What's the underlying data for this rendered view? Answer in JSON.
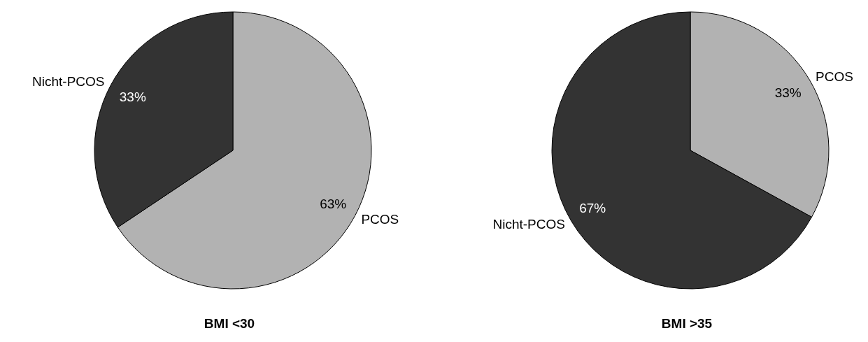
{
  "chart_data": [
    {
      "type": "pie",
      "title": "BMI <30",
      "categories": [
        "PCOS",
        "Nicht-PCOS"
      ],
      "values": [
        63,
        33
      ],
      "colors": [
        "#b2b2b2",
        "#333333"
      ],
      "value_labels": [
        "63%",
        "33%"
      ]
    },
    {
      "type": "pie",
      "title": "BMI >35",
      "categories": [
        "PCOS",
        "Nicht-PCOS"
      ],
      "values": [
        33,
        67
      ],
      "colors": [
        "#b2b2b2",
        "#333333"
      ],
      "value_labels": [
        "33%",
        "67%"
      ]
    }
  ]
}
